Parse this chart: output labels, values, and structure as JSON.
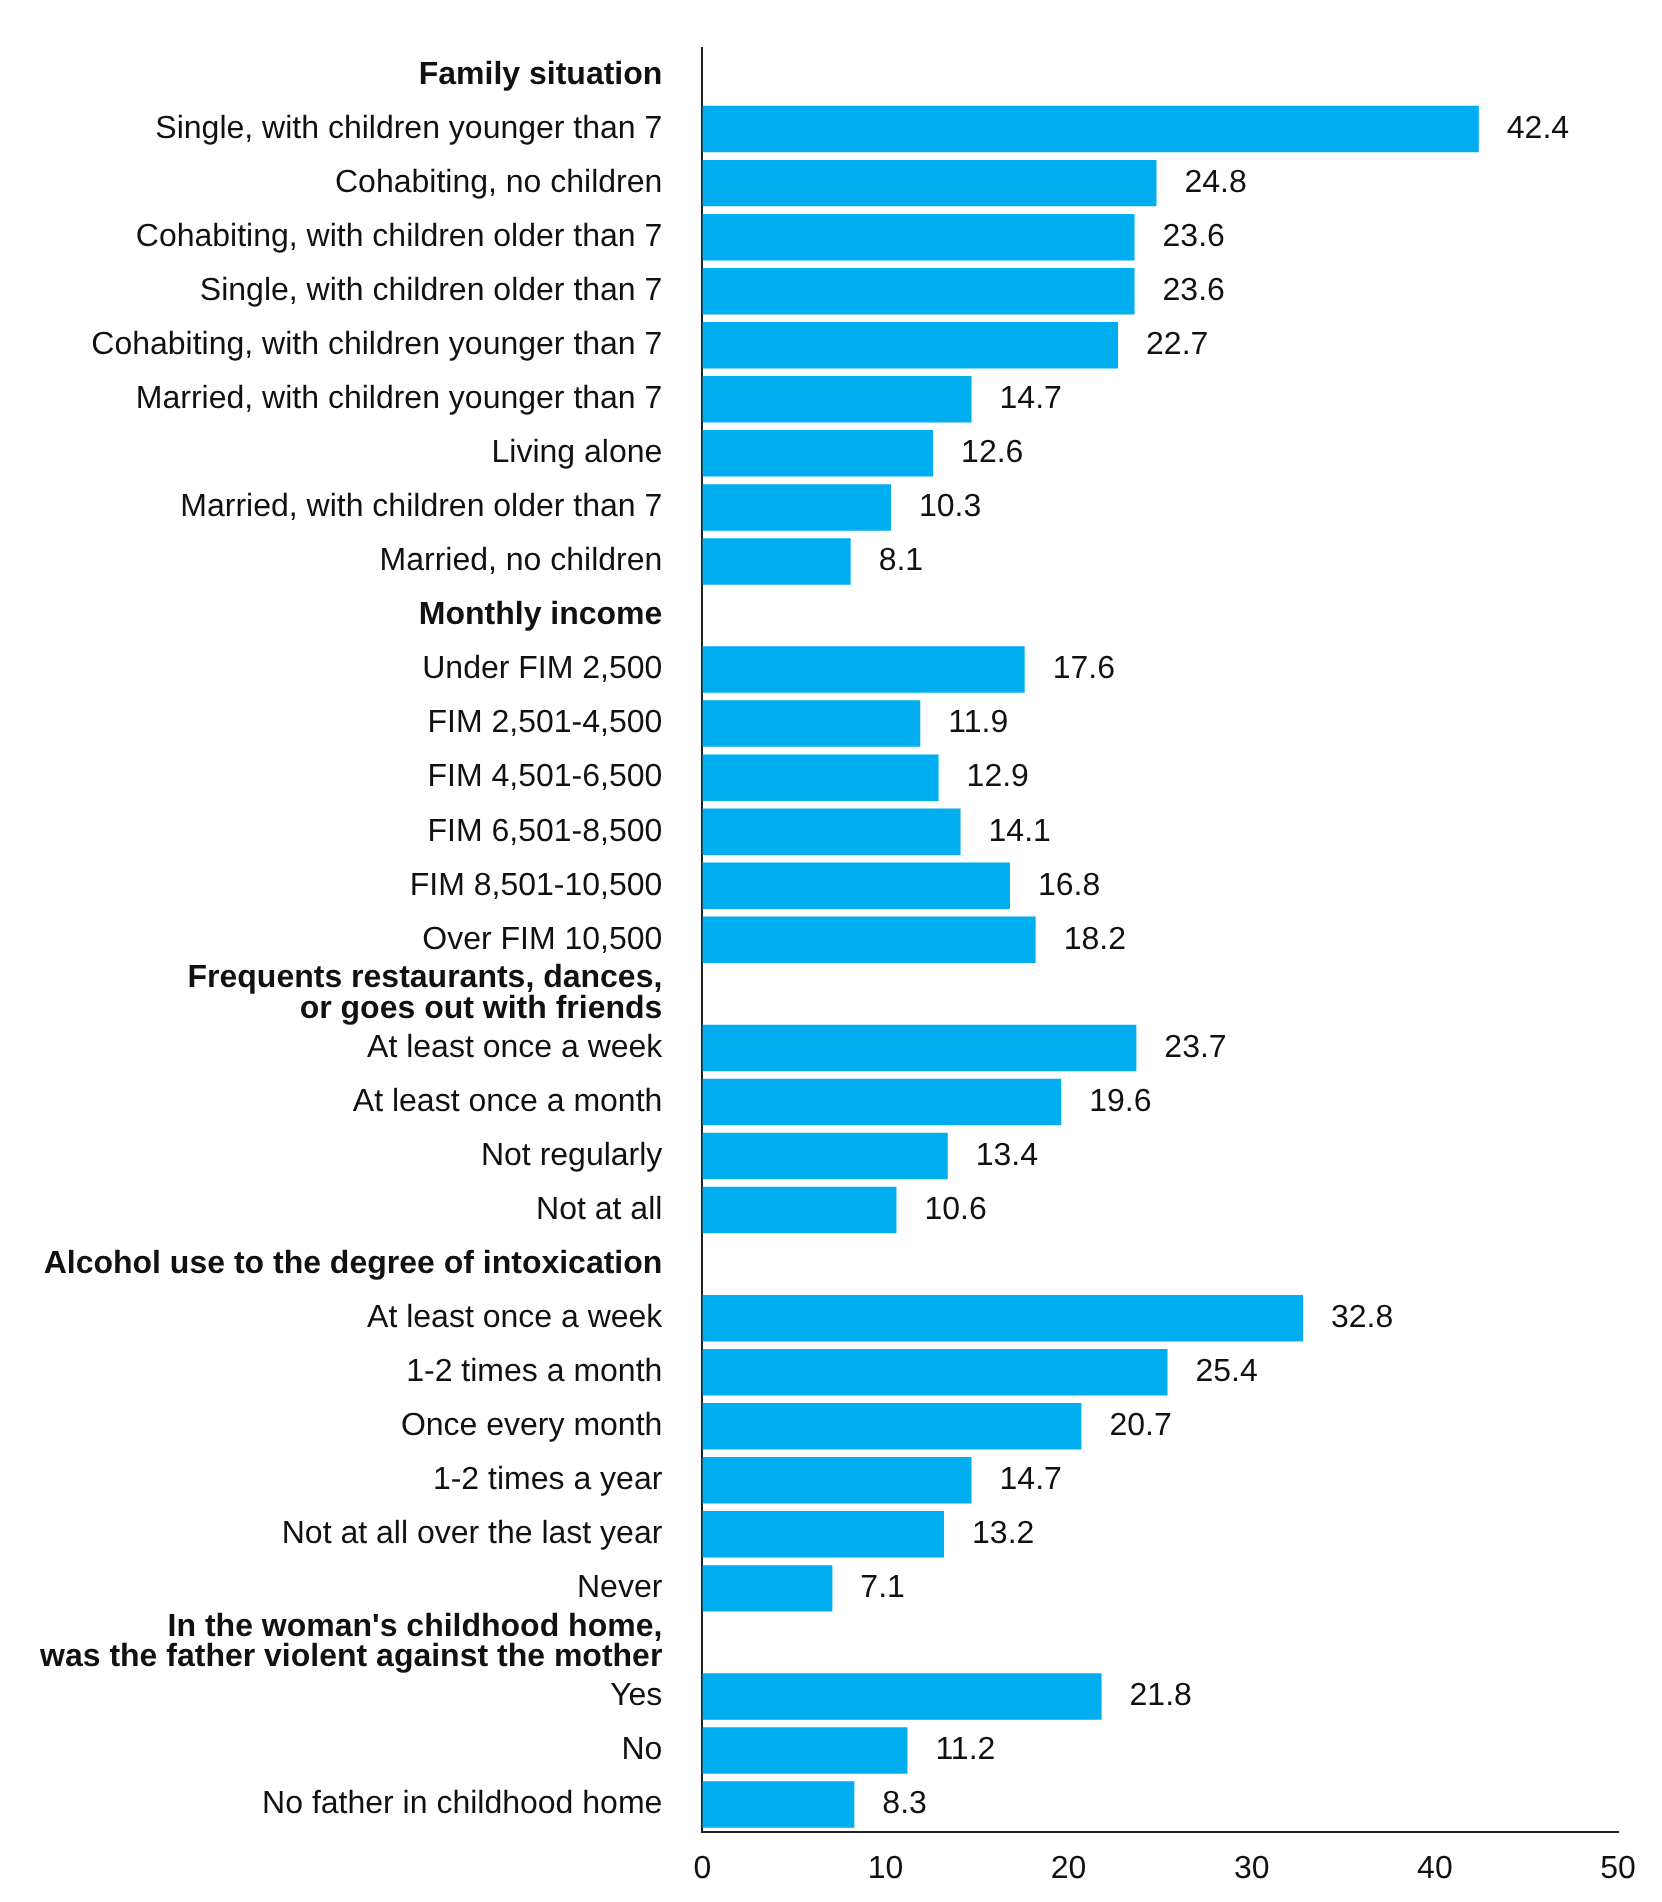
{
  "chart_data": {
    "type": "bar",
    "orientation": "horizontal",
    "color": "#00aeef",
    "data_labels": true,
    "grid": false,
    "legend": false,
    "categories": [
      "Family situation",
      "Single, with children younger than 7",
      "Cohabiting, no children",
      "Cohabiting, with children older than 7",
      "Single, with children older than 7",
      "Cohabiting, with children younger than 7",
      "Married, with children younger than 7",
      "Living alone",
      "Married, with children older than 7",
      "Married, no children",
      "Monthly income",
      "Under FIM 2,500",
      "FIM 2,501-4,500",
      "FIM 4,501-6,500",
      "FIM 6,501-8,500",
      "FIM 8,501-10,500",
      "Over FIM 10,500",
      "Frequents restaurants, dances,\nor goes out with friends",
      "At least once a week",
      "At least once a month",
      "Not regularly",
      "Not at all",
      "Alcohol use to the degree of intoxication",
      "At least once a week",
      "1-2 times a month",
      "Once every month",
      "1-2 times a year",
      "Not at all over the last year",
      "Never",
      "In the woman's childhood home,\nwas the father violent against the mother",
      "Yes",
      "No",
      "No father in childhood home"
    ],
    "values": [
      null,
      42.4,
      24.8,
      23.6,
      23.6,
      22.7,
      14.7,
      12.6,
      10.3,
      8.1,
      null,
      17.6,
      11.9,
      12.9,
      14.1,
      16.8,
      18.2,
      null,
      23.7,
      19.6,
      13.4,
      10.6,
      null,
      32.8,
      25.4,
      20.7,
      14.7,
      13.2,
      7.1,
      null,
      21.8,
      11.2,
      8.3
    ],
    "xlim": [
      0,
      50
    ],
    "xticks": [
      0,
      10,
      20,
      30,
      40,
      50
    ]
  }
}
